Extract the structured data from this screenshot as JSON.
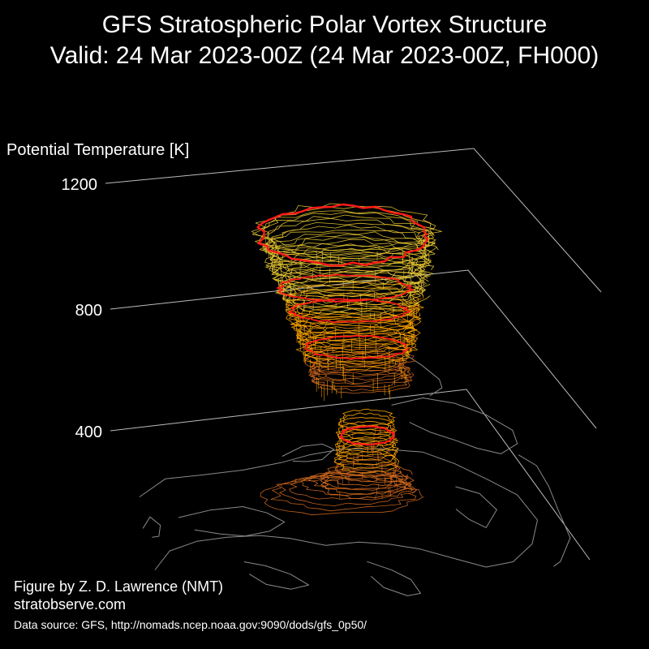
{
  "title": {
    "line1": "GFS Stratospheric Polar Vortex Structure",
    "line2": "Valid: 24 Mar 2023-00Z  (24 Mar 2023-00Z, FH000)"
  },
  "credits": {
    "author": "Figure by Z. D. Lawrence (NMT)",
    "site": "stratobserve.com",
    "source": "Data source: GFS, http://nomads.ncep.noaa.gov:9090/dods/gfs_0p50/"
  },
  "chart_data": {
    "type": "3d-isosurface",
    "zlabel": "Potential Temperature [K]",
    "z_ticks": [
      400,
      800,
      1200
    ],
    "grid": true,
    "colors": {
      "background": "#000000",
      "axis_lines": "#bbbbbb",
      "coastlines": "#8a8a8a",
      "low_levels": "#d2691e",
      "mid_levels": "#ffa500",
      "high_levels": "#e8c832",
      "vortex_edge": "#ff1a1a"
    }
  }
}
